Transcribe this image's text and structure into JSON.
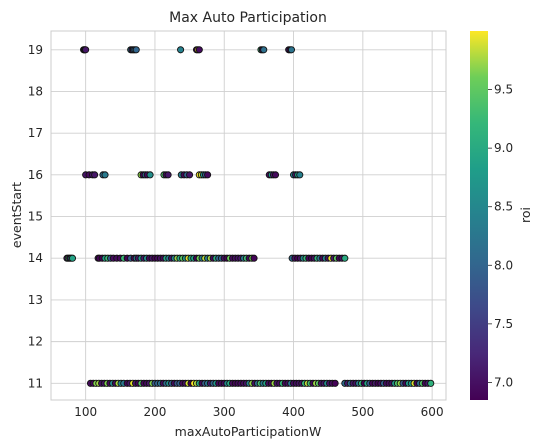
{
  "chart_data": {
    "type": "scatter",
    "title": "Max Auto Participation",
    "xlabel": "maxAutoParticipationW",
    "ylabel": "eventStart",
    "xlim": [
      50,
      620
    ],
    "ylim": [
      10.6,
      19.45
    ],
    "xticks": [
      "100",
      "200",
      "300",
      "400",
      "500",
      "600"
    ],
    "yticks": [
      "11",
      "12",
      "13",
      "14",
      "15",
      "16",
      "17",
      "18",
      "19"
    ],
    "grid": true,
    "colorbar": {
      "label": "roi",
      "colormap": "viridis",
      "range": [
        6.85,
        10.0
      ],
      "ticks": [
        "7.0",
        "7.5",
        "8.0",
        "8.5",
        "9.0",
        "9.5"
      ]
    },
    "groups": [
      {
        "y": 19,
        "x": [
          97,
          98,
          99,
          100,
          165,
          167,
          169,
          171,
          173,
          237,
          260,
          262,
          264,
          353,
          355,
          357,
          393,
          395,
          397
        ]
      },
      {
        "y": 16,
        "x": [
          100,
          105,
          110,
          113,
          125,
          128,
          180,
          183,
          186,
          189,
          193,
          213,
          216,
          219,
          238,
          242,
          246,
          250,
          264,
          267,
          270,
          273,
          276,
          365,
          368,
          371,
          374,
          400,
          403,
          406,
          409
        ]
      },
      {
        "y": 14,
        "x": [
          73,
          75,
          77,
          79,
          81,
          118,
          120,
          124,
          128,
          132,
          136,
          140,
          145,
          150,
          155,
          160,
          165,
          170,
          173,
          176,
          180,
          184,
          188,
          192,
          196,
          200,
          204,
          208,
          212,
          216,
          220,
          224,
          228,
          232,
          236,
          240,
          244,
          248,
          252,
          256,
          260,
          264,
          268,
          272,
          276,
          280,
          284,
          288,
          292,
          296,
          300,
          304,
          308,
          312,
          316,
          320,
          324,
          328,
          332,
          336,
          340,
          343,
          398,
          402,
          406,
          410,
          414,
          418,
          422,
          426,
          430,
          434,
          438,
          442,
          446,
          450,
          454,
          458,
          462,
          466,
          470,
          474
        ]
      },
      {
        "y": 11,
        "x": [
          107,
          111,
          115,
          119,
          123,
          127,
          131,
          135,
          139,
          143,
          147,
          151,
          155,
          160,
          164,
          168,
          172,
          176,
          180,
          184,
          188,
          192,
          196,
          200,
          204,
          208,
          212,
          216,
          220,
          224,
          228,
          232,
          236,
          240,
          244,
          248,
          252,
          256,
          260,
          264,
          268,
          272,
          276,
          280,
          284,
          288,
          292,
          296,
          300,
          304,
          308,
          312,
          316,
          320,
          324,
          328,
          332,
          336,
          340,
          344,
          348,
          352,
          356,
          360,
          364,
          368,
          372,
          376,
          380,
          384,
          388,
          392,
          396,
          400,
          404,
          408,
          412,
          416,
          420,
          424,
          428,
          432,
          436,
          440,
          444,
          448,
          452,
          456,
          460,
          474,
          478,
          482,
          486,
          490,
          494,
          498,
          502,
          506,
          510,
          514,
          518,
          522,
          526,
          530,
          534,
          538,
          542,
          546,
          550,
          554,
          558,
          562,
          566,
          570,
          574,
          578,
          582,
          586,
          590,
          594,
          598
        ]
      }
    ]
  }
}
